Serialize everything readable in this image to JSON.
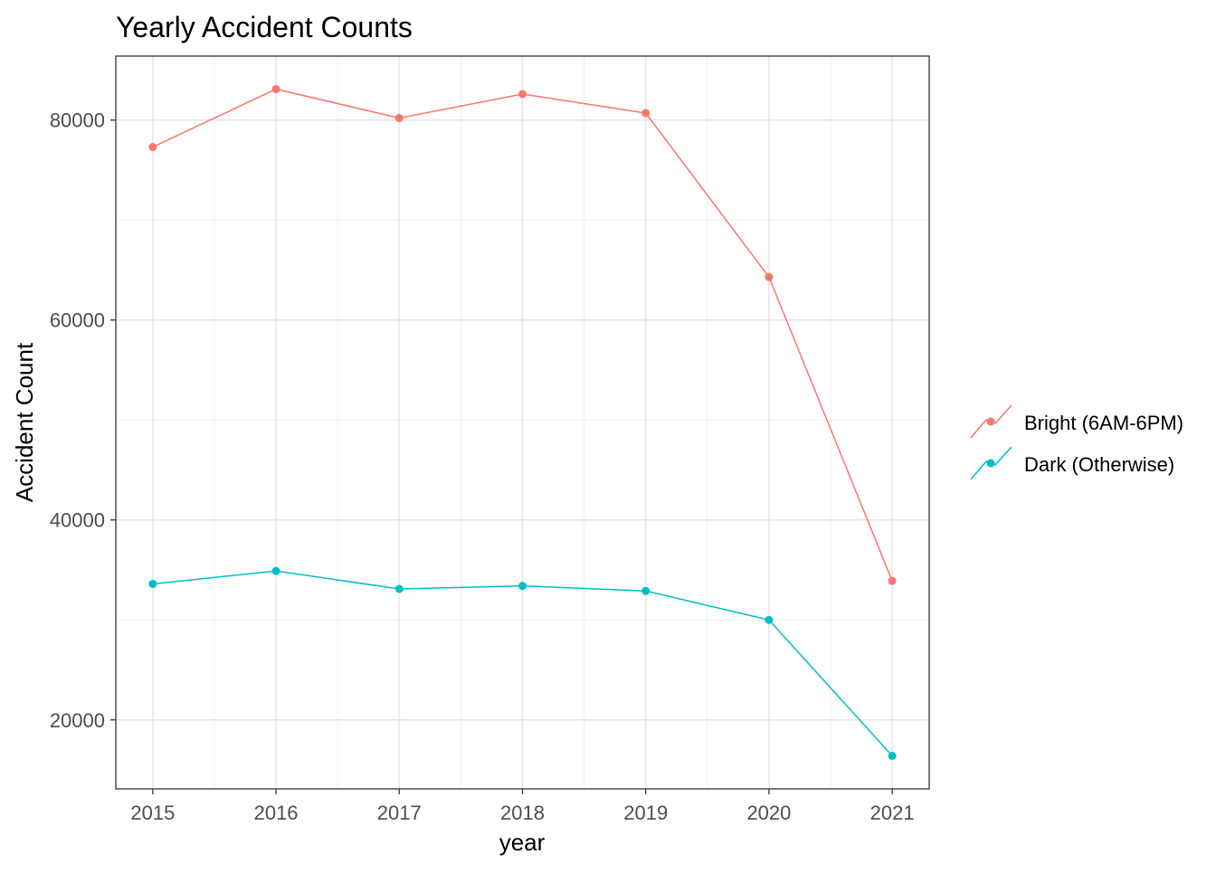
{
  "chart_data": {
    "type": "line",
    "title": "Yearly Accident Counts",
    "xlabel": "year",
    "ylabel": "Accident Count",
    "x": [
      2015,
      2016,
      2017,
      2018,
      2019,
      2020,
      2021
    ],
    "x_ticks": [
      "2015",
      "2016",
      "2017",
      "2018",
      "2019",
      "2020",
      "2021"
    ],
    "y_ticks": [
      "20000",
      "40000",
      "60000",
      "80000"
    ],
    "y_tick_values": [
      20000,
      40000,
      60000,
      80000
    ],
    "xlim": [
      2014.7,
      2021.3
    ],
    "ylim": [
      13100,
      86400
    ],
    "grid": true,
    "legend_position": "right",
    "series": [
      {
        "name": "Bright (6AM-6PM)",
        "color": "#F8766D",
        "values": [
          77300,
          83100,
          80200,
          82600,
          80700,
          64300,
          33900
        ]
      },
      {
        "name": "Dark (Otherwise)",
        "color": "#00BFC4",
        "values": [
          33600,
          34900,
          33100,
          33400,
          32900,
          30000,
          16400
        ]
      }
    ]
  }
}
